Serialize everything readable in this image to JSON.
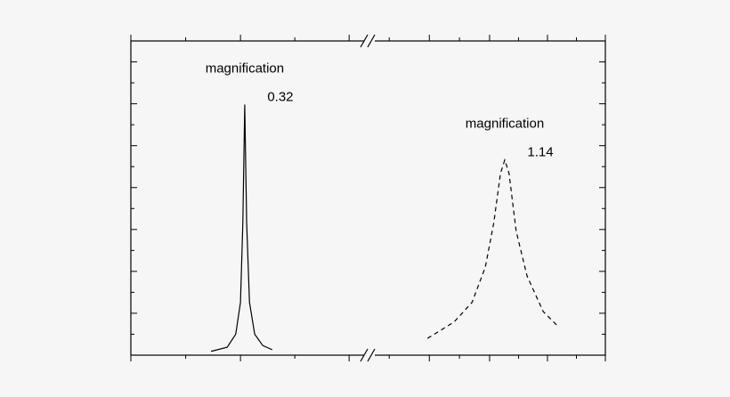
{
  "chart_data": {
    "type": "line",
    "xlim": [
      0,
      100
    ],
    "xticks": [
      0,
      23.1,
      46,
      62.9,
      75.6,
      87.8,
      100
    ],
    "ylim": [
      0,
      7.5
    ],
    "yticks": [
      0,
      1,
      2,
      3,
      4,
      5,
      6,
      7
    ],
    "series": [
      {
        "color": "#000000",
        "dash": false,
        "x": [
          16.9,
          20.3,
          22.1,
          23.1,
          23.6,
          24.0,
          24.4,
          25.0,
          26.1,
          27.8,
          29.8
        ],
        "values": [
          0.09,
          0.19,
          0.5,
          1.26,
          3.17,
          5.98,
          3.17,
          1.26,
          0.5,
          0.23,
          0.13
        ]
      },
      {
        "color": "#000000",
        "dash": true,
        "x": [
          62.5,
          68.1,
          71.9,
          74.7,
          76.5,
          77.9,
          78.8,
          79.7,
          81.2,
          83.5,
          86.9,
          90.1
        ],
        "values": [
          0.4,
          0.79,
          1.26,
          2.1,
          3.17,
          4.34,
          4.66,
          4.34,
          2.96,
          1.89,
          1.04,
          0.68
        ]
      }
    ],
    "annotations": [
      {
        "lines": [
          "magnification",
          "0.32"
        ]
      },
      {
        "lines": [
          "magnification",
          "1.14"
        ]
      }
    ]
  }
}
